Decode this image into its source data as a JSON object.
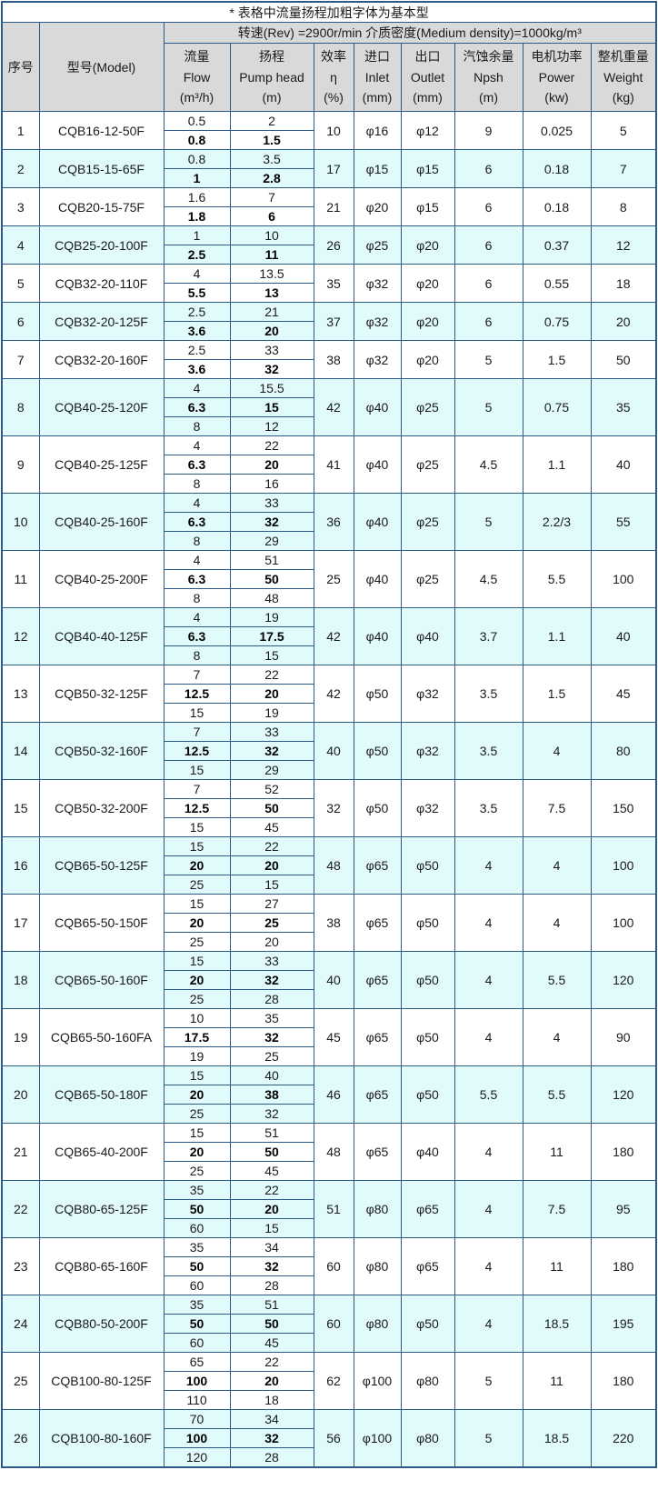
{
  "table": {
    "note": "* 表格中流量扬程加粗字体为基本型",
    "conditions": "转速(Rev) =2900r/min  介质密度(Medium density)=1000kg/m³",
    "columns": {
      "no": "序号",
      "model": "型号(Model)",
      "flow": [
        "流量",
        "Flow",
        "(m³/h)"
      ],
      "head": [
        "扬程",
        "Pump head",
        "(m)"
      ],
      "eff": [
        "效率",
        "η",
        "(%)"
      ],
      "inlet": [
        "进口",
        "Inlet",
        "(mm)"
      ],
      "outlet": [
        "出口",
        "Outlet",
        "(mm)"
      ],
      "npsh": [
        "汽蚀余量",
        "Npsh",
        "(m)"
      ],
      "power": [
        "电机功率",
        "Power",
        "(kw)"
      ],
      "weight": [
        "整机重量",
        "Weight",
        "(kg)"
      ]
    },
    "rows": [
      {
        "no": "1",
        "model": "CQB16-12-50F",
        "points": [
          {
            "flow": "0.5",
            "head": "2"
          },
          {
            "flow": "0.8",
            "head": "1.5",
            "base": true
          }
        ],
        "eff": "10",
        "inlet": "φ16",
        "outlet": "φ12",
        "npsh": "9",
        "power": "0.025",
        "weight": "5"
      },
      {
        "no": "2",
        "model": "CQB15-15-65F",
        "points": [
          {
            "flow": "0.8",
            "head": "3.5"
          },
          {
            "flow": "1",
            "head": "2.8",
            "base": true
          }
        ],
        "eff": "17",
        "inlet": "φ15",
        "outlet": "φ15",
        "npsh": "6",
        "power": "0.18",
        "weight": "7"
      },
      {
        "no": "3",
        "model": "CQB20-15-75F",
        "points": [
          {
            "flow": "1.6",
            "head": "7"
          },
          {
            "flow": "1.8",
            "head": "6",
            "base": true
          }
        ],
        "eff": "21",
        "inlet": "φ20",
        "outlet": "φ15",
        "npsh": "6",
        "power": "0.18",
        "weight": "8"
      },
      {
        "no": "4",
        "model": "CQB25-20-100F",
        "points": [
          {
            "flow": "1",
            "head": "10"
          },
          {
            "flow": "2.5",
            "head": "11",
            "base": true
          }
        ],
        "eff": "26",
        "inlet": "φ25",
        "outlet": "φ20",
        "npsh": "6",
        "power": "0.37",
        "weight": "12"
      },
      {
        "no": "5",
        "model": "CQB32-20-110F",
        "points": [
          {
            "flow": "4",
            "head": "13.5"
          },
          {
            "flow": "5.5",
            "head": "13",
            "base": true
          }
        ],
        "eff": "35",
        "inlet": "φ32",
        "outlet": "φ20",
        "npsh": "6",
        "power": "0.55",
        "weight": "18"
      },
      {
        "no": "6",
        "model": "CQB32-20-125F",
        "points": [
          {
            "flow": "2.5",
            "head": "21"
          },
          {
            "flow": "3.6",
            "head": "20",
            "base": true
          }
        ],
        "eff": "37",
        "inlet": "φ32",
        "outlet": "φ20",
        "npsh": "6",
        "power": "0.75",
        "weight": "20"
      },
      {
        "no": "7",
        "model": "CQB32-20-160F",
        "points": [
          {
            "flow": "2.5",
            "head": "33"
          },
          {
            "flow": "3.6",
            "head": "32",
            "base": true
          }
        ],
        "eff": "38",
        "inlet": "φ32",
        "outlet": "φ20",
        "npsh": "5",
        "power": "1.5",
        "weight": "50"
      },
      {
        "no": "8",
        "model": "CQB40-25-120F",
        "points": [
          {
            "flow": "4",
            "head": "15.5"
          },
          {
            "flow": "6.3",
            "head": "15",
            "base": true
          },
          {
            "flow": "8",
            "head": "12"
          }
        ],
        "eff": "42",
        "inlet": "φ40",
        "outlet": "φ25",
        "npsh": "5",
        "power": "0.75",
        "weight": "35"
      },
      {
        "no": "9",
        "model": "CQB40-25-125F",
        "points": [
          {
            "flow": "4",
            "head": "22"
          },
          {
            "flow": "6.3",
            "head": "20",
            "base": true
          },
          {
            "flow": "8",
            "head": "16"
          }
        ],
        "eff": "41",
        "inlet": "φ40",
        "outlet": "φ25",
        "npsh": "4.5",
        "power": "1.1",
        "weight": "40"
      },
      {
        "no": "10",
        "model": "CQB40-25-160F",
        "points": [
          {
            "flow": "4",
            "head": "33"
          },
          {
            "flow": "6.3",
            "head": "32",
            "base": true
          },
          {
            "flow": "8",
            "head": "29"
          }
        ],
        "eff": "36",
        "inlet": "φ40",
        "outlet": "φ25",
        "npsh": "5",
        "power": "2.2/3",
        "weight": "55"
      },
      {
        "no": "11",
        "model": "CQB40-25-200F",
        "points": [
          {
            "flow": "4",
            "head": "51"
          },
          {
            "flow": "6.3",
            "head": "50",
            "base": true
          },
          {
            "flow": "8",
            "head": "48"
          }
        ],
        "eff": "25",
        "inlet": "φ40",
        "outlet": "φ25",
        "npsh": "4.5",
        "power": "5.5",
        "weight": "100"
      },
      {
        "no": "12",
        "model": "CQB40-40-125F",
        "points": [
          {
            "flow": "4",
            "head": "19"
          },
          {
            "flow": "6.3",
            "head": "17.5",
            "base": true
          },
          {
            "flow": "8",
            "head": "15"
          }
        ],
        "eff": "42",
        "inlet": "φ40",
        "outlet": "φ40",
        "npsh": "3.7",
        "power": "1.1",
        "weight": "40"
      },
      {
        "no": "13",
        "model": "CQB50-32-125F",
        "points": [
          {
            "flow": "7",
            "head": "22"
          },
          {
            "flow": "12.5",
            "head": "20",
            "base": true
          },
          {
            "flow": "15",
            "head": "19"
          }
        ],
        "eff": "42",
        "inlet": "φ50",
        "outlet": "φ32",
        "npsh": "3.5",
        "power": "1.5",
        "weight": "45"
      },
      {
        "no": "14",
        "model": "CQB50-32-160F",
        "points": [
          {
            "flow": "7",
            "head": "33"
          },
          {
            "flow": "12.5",
            "head": "32",
            "base": true
          },
          {
            "flow": "15",
            "head": "29"
          }
        ],
        "eff": "40",
        "inlet": "φ50",
        "outlet": "φ32",
        "npsh": "3.5",
        "power": "4",
        "weight": "80"
      },
      {
        "no": "15",
        "model": "CQB50-32-200F",
        "points": [
          {
            "flow": "7",
            "head": "52"
          },
          {
            "flow": "12.5",
            "head": "50",
            "base": true
          },
          {
            "flow": "15",
            "head": "45"
          }
        ],
        "eff": "32",
        "inlet": "φ50",
        "outlet": "φ32",
        "npsh": "3.5",
        "power": "7.5",
        "weight": "150"
      },
      {
        "no": "16",
        "model": "CQB65-50-125F",
        "points": [
          {
            "flow": "15",
            "head": "22"
          },
          {
            "flow": "20",
            "head": "20",
            "base": true
          },
          {
            "flow": "25",
            "head": "15"
          }
        ],
        "eff": "48",
        "inlet": "φ65",
        "outlet": "φ50",
        "npsh": "4",
        "power": "4",
        "weight": "100"
      },
      {
        "no": "17",
        "model": "CQB65-50-150F",
        "points": [
          {
            "flow": "15",
            "head": "27"
          },
          {
            "flow": "20",
            "head": "25",
            "base": true
          },
          {
            "flow": "25",
            "head": "20"
          }
        ],
        "eff": "38",
        "inlet": "φ65",
        "outlet": "φ50",
        "npsh": "4",
        "power": "4",
        "weight": "100"
      },
      {
        "no": "18",
        "model": "CQB65-50-160F",
        "points": [
          {
            "flow": "15",
            "head": "33"
          },
          {
            "flow": "20",
            "head": "32",
            "base": true
          },
          {
            "flow": "25",
            "head": "28"
          }
        ],
        "eff": "40",
        "inlet": "φ65",
        "outlet": "φ50",
        "npsh": "4",
        "power": "5.5",
        "weight": "120"
      },
      {
        "no": "19",
        "model": "CQB65-50-160FA",
        "points": [
          {
            "flow": "10",
            "head": "35"
          },
          {
            "flow": "17.5",
            "head": "32",
            "base": true
          },
          {
            "flow": "19",
            "head": "25"
          }
        ],
        "eff": "45",
        "inlet": "φ65",
        "outlet": "φ50",
        "npsh": "4",
        "power": "4",
        "weight": "90"
      },
      {
        "no": "20",
        "model": "CQB65-50-180F",
        "points": [
          {
            "flow": "15",
            "head": "40"
          },
          {
            "flow": "20",
            "head": "38",
            "base": true
          },
          {
            "flow": "25",
            "head": "32"
          }
        ],
        "eff": "46",
        "inlet": "φ65",
        "outlet": "φ50",
        "npsh": "5.5",
        "power": "5.5",
        "weight": "120"
      },
      {
        "no": "21",
        "model": "CQB65-40-200F",
        "points": [
          {
            "flow": "15",
            "head": "51"
          },
          {
            "flow": "20",
            "head": "50",
            "base": true
          },
          {
            "flow": "25",
            "head": "45"
          }
        ],
        "eff": "48",
        "inlet": "φ65",
        "outlet": "φ40",
        "npsh": "4",
        "power": "11",
        "weight": "180"
      },
      {
        "no": "22",
        "model": "CQB80-65-125F",
        "points": [
          {
            "flow": "35",
            "head": "22"
          },
          {
            "flow": "50",
            "head": "20",
            "base": true
          },
          {
            "flow": "60",
            "head": "15"
          }
        ],
        "eff": "51",
        "inlet": "φ80",
        "outlet": "φ65",
        "npsh": "4",
        "power": "7.5",
        "weight": "95"
      },
      {
        "no": "23",
        "model": "CQB80-65-160F",
        "points": [
          {
            "flow": "35",
            "head": "34"
          },
          {
            "flow": "50",
            "head": "32",
            "base": true
          },
          {
            "flow": "60",
            "head": "28"
          }
        ],
        "eff": "60",
        "inlet": "φ80",
        "outlet": "φ65",
        "npsh": "4",
        "power": "11",
        "weight": "180"
      },
      {
        "no": "24",
        "model": "CQB80-50-200F",
        "points": [
          {
            "flow": "35",
            "head": "51"
          },
          {
            "flow": "50",
            "head": "50",
            "base": true
          },
          {
            "flow": "60",
            "head": "45"
          }
        ],
        "eff": "60",
        "inlet": "φ80",
        "outlet": "φ50",
        "npsh": "4",
        "power": "18.5",
        "weight": "195"
      },
      {
        "no": "25",
        "model": "CQB100-80-125F",
        "points": [
          {
            "flow": "65",
            "head": "22"
          },
          {
            "flow": "100",
            "head": "20",
            "base": true
          },
          {
            "flow": "110",
            "head": "18"
          }
        ],
        "eff": "62",
        "inlet": "φ100",
        "outlet": "φ80",
        "npsh": "5",
        "power": "11",
        "weight": "180"
      },
      {
        "no": "26",
        "model": "CQB100-80-160F",
        "points": [
          {
            "flow": "70",
            "head": "34"
          },
          {
            "flow": "100",
            "head": "32",
            "base": true
          },
          {
            "flow": "120",
            "head": "28"
          }
        ],
        "eff": "56",
        "inlet": "φ100",
        "outlet": "φ80",
        "npsh": "5",
        "power": "18.5",
        "weight": "220"
      }
    ]
  },
  "colors": {
    "border": "#2B5A87",
    "band_cyan": "#E1FAFC",
    "header_gray": "#D9D9D9",
    "text": "#1a1a1a"
  }
}
